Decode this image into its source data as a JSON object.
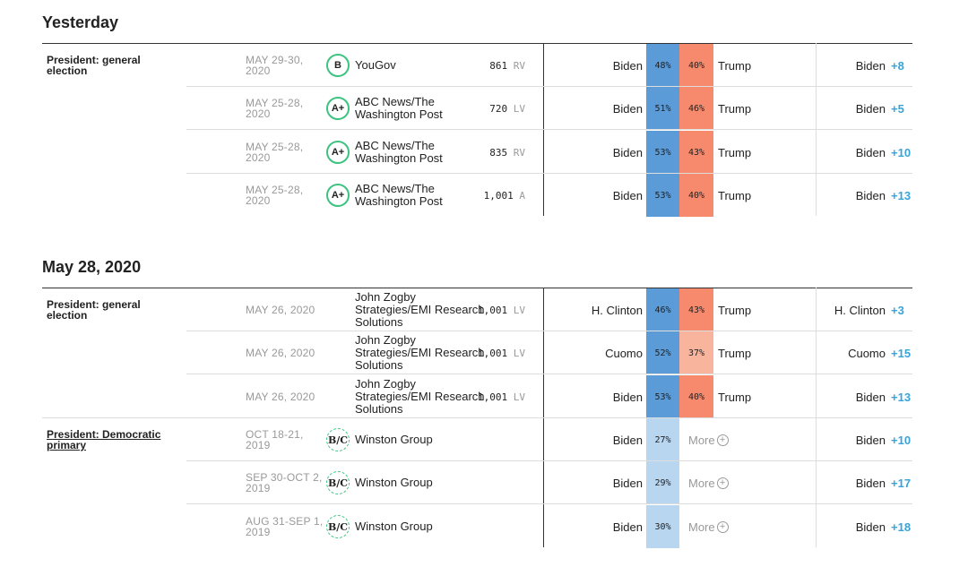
{
  "colors": {
    "dem_strong": "#5b9bd8",
    "dem_light": "#b9d6f0",
    "rep_strong": "#f78a6d",
    "rep_light": "#f9b49e",
    "grade_ring": "#3cc380",
    "margin_blue": "#3aa3d8"
  },
  "sections": [
    {
      "title": "Yesterday",
      "rows": [
        {
          "race": "President: general election",
          "race_link": false,
          "dates": [
            "MAY 29-30,",
            "2020"
          ],
          "grade": "B",
          "grade_style": "solid",
          "pollster": [
            "YouGov"
          ],
          "sample": "861",
          "population": "RV",
          "cand1": "Biden",
          "pct1": "48%",
          "cand2": "Trump",
          "pct2": "40%",
          "leader": "Biden",
          "margin": "+8"
        },
        {
          "race": "",
          "race_link": false,
          "dates": [
            "MAY 25-28,",
            "2020"
          ],
          "grade": "A+",
          "grade_style": "solid",
          "pollster": [
            "ABC News/The",
            "Washington Post"
          ],
          "sample": "720",
          "population": "LV",
          "cand1": "Biden",
          "pct1": "51%",
          "cand2": "Trump",
          "pct2": "46%",
          "leader": "Biden",
          "margin": "+5"
        },
        {
          "race": "",
          "race_link": false,
          "dates": [
            "MAY 25-28,",
            "2020"
          ],
          "grade": "A+",
          "grade_style": "solid",
          "pollster": [
            "ABC News/The",
            "Washington Post"
          ],
          "sample": "835",
          "population": "RV",
          "cand1": "Biden",
          "pct1": "53%",
          "cand2": "Trump",
          "pct2": "43%",
          "leader": "Biden",
          "margin": "+10"
        },
        {
          "race": "",
          "race_link": false,
          "dates": [
            "MAY 25-28,",
            "2020"
          ],
          "grade": "A+",
          "grade_style": "solid",
          "pollster": [
            "ABC News/The",
            "Washington Post"
          ],
          "sample": "1,001",
          "population": "A",
          "cand1": "Biden",
          "pct1": "53%",
          "cand2": "Trump",
          "pct2": "40%",
          "leader": "Biden",
          "margin": "+13"
        }
      ]
    },
    {
      "title": "May 28, 2020",
      "rows": [
        {
          "race": "President: general election",
          "race_link": false,
          "dates": [
            "MAY 26, 2020"
          ],
          "grade": "",
          "grade_style": "none",
          "pollster": [
            "John Zogby",
            "Strategies/EMI Research",
            "Solutions"
          ],
          "sample": "1,001",
          "population": "LV",
          "cand1": "H. Clinton",
          "pct1": "46%",
          "cand2": "Trump",
          "pct2": "43%",
          "leader": "H. Clinton",
          "margin": "+3"
        },
        {
          "race": "",
          "race_link": false,
          "dates": [
            "MAY 26, 2020"
          ],
          "grade": "",
          "grade_style": "none",
          "pollster": [
            "John Zogby",
            "Strategies/EMI Research",
            "Solutions"
          ],
          "sample": "1,001",
          "population": "LV",
          "cand1": "Cuomo",
          "pct1": "52%",
          "cand2": "Trump",
          "pct2": "37%",
          "leader": "Cuomo",
          "margin": "+15"
        },
        {
          "race": "",
          "race_link": false,
          "dates": [
            "MAY 26, 2020"
          ],
          "grade": "",
          "grade_style": "none",
          "pollster": [
            "John Zogby",
            "Strategies/EMI Research",
            "Solutions"
          ],
          "sample": "1,001",
          "population": "LV",
          "cand1": "Biden",
          "pct1": "53%",
          "cand2": "Trump",
          "pct2": "40%",
          "leader": "Biden",
          "margin": "+13"
        },
        {
          "race": "President: Democratic primary",
          "race_link": true,
          "dates": [
            "OCT 18-21,",
            "2019"
          ],
          "grade": "B/C",
          "grade_style": "dashed",
          "pollster": [
            "Winston Group"
          ],
          "sample": "",
          "population": "",
          "cand1": "Biden",
          "pct1": "27%",
          "cand2": "More",
          "pct2": "",
          "leader": "Biden",
          "margin": "+10"
        },
        {
          "race": "",
          "race_link": false,
          "dates": [
            "SEP 30-OCT 2,",
            "2019"
          ],
          "grade": "B/C",
          "grade_style": "dashed",
          "pollster": [
            "Winston Group"
          ],
          "sample": "",
          "population": "",
          "cand1": "Biden",
          "pct1": "29%",
          "cand2": "More",
          "pct2": "",
          "leader": "Biden",
          "margin": "+17"
        },
        {
          "race": "",
          "race_link": false,
          "dates": [
            "AUG 31-SEP 1,",
            "2019"
          ],
          "grade": "B/C",
          "grade_style": "dashed",
          "pollster": [
            "Winston Group"
          ],
          "sample": "",
          "population": "",
          "cand1": "Biden",
          "pct1": "30%",
          "cand2": "More",
          "pct2": "",
          "leader": "Biden",
          "margin": "+18"
        }
      ]
    }
  ]
}
